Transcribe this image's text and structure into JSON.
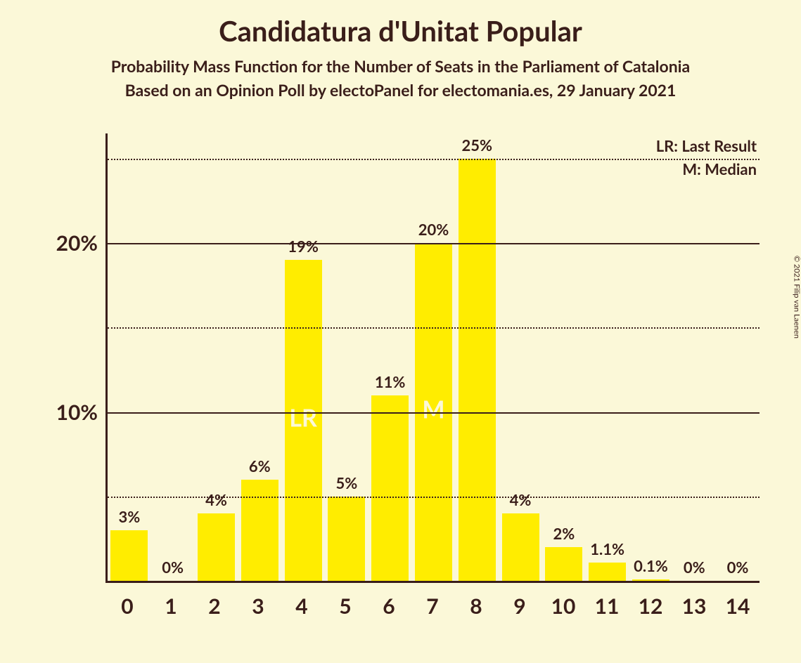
{
  "header": {
    "title": "Candidatura d'Unitat Popular",
    "subtitle1": "Probability Mass Function for the Number of Seats in the Parliament of Catalonia",
    "subtitle2": "Based on an Opinion Poll by electoPanel for electomania.es, 29 January 2021"
  },
  "legend": {
    "lr": "LR: Last Result",
    "m": "M: Median"
  },
  "copyright": "© 2021 Filip van Laenen",
  "chart": {
    "type": "bar",
    "background_color": "#fbf8d8",
    "bar_color": "#ffed00",
    "text_color": "#3a1e1a",
    "marker_text_color": "#fbf8d8",
    "title_fontsize": 40,
    "subtitle_fontsize": 23,
    "axis_fontsize": 30,
    "barlabel_fontsize": 22,
    "marker_fontsize": 34,
    "legend_fontsize": 22,
    "ymax": 26.5,
    "ymajor": [
      10,
      20
    ],
    "yminor": [
      5,
      15,
      25
    ],
    "ytick_labels": [
      "10%",
      "20%"
    ],
    "categories": [
      "0",
      "1",
      "2",
      "3",
      "4",
      "5",
      "6",
      "7",
      "8",
      "9",
      "10",
      "11",
      "12",
      "13",
      "14"
    ],
    "values": [
      3,
      0,
      4,
      6,
      19,
      5,
      11,
      20,
      25,
      4,
      2,
      1.1,
      0.1,
      0,
      0
    ],
    "value_labels": [
      "3%",
      "0%",
      "4%",
      "6%",
      "19%",
      "5%",
      "11%",
      "20%",
      "25%",
      "4%",
      "2%",
      "1.1%",
      "0.1%",
      "0%",
      "0%"
    ],
    "markers": {
      "4": "LR",
      "7": "M"
    }
  }
}
